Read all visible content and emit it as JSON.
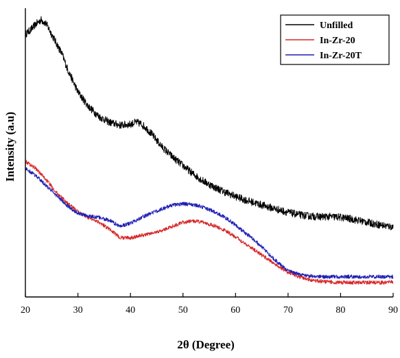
{
  "chart_data": {
    "type": "line",
    "title": "",
    "xlabel": "2θ (Degree)",
    "ylabel": "Intensity (a.u)",
    "xlim": [
      20,
      90
    ],
    "ylim": [
      0,
      100
    ],
    "xticks": [
      "20",
      "30",
      "40",
      "50",
      "60",
      "70",
      "80",
      "90"
    ],
    "grid": false,
    "legend_position": "top-right",
    "series": [
      {
        "name": "Unfilled",
        "color": "#000000",
        "x": [
          20,
          21,
          22,
          23,
          24,
          25,
          26,
          27,
          28,
          30,
          32,
          34,
          36,
          38,
          40,
          41,
          42,
          43,
          44,
          46,
          48,
          50,
          52,
          54,
          56,
          58,
          60,
          62,
          64,
          66,
          68,
          70,
          72,
          74,
          76,
          78,
          80,
          82,
          84,
          86,
          88,
          90
        ],
        "y": [
          91.0,
          92.5,
          94.5,
          96.0,
          94.5,
          91.0,
          87.5,
          84.0,
          79.0,
          71.0,
          66.0,
          62.5,
          60.5,
          59.5,
          59.8,
          60.5,
          60.0,
          58.5,
          56.5,
          52.0,
          48.5,
          45.5,
          42.5,
          40.0,
          38.0,
          36.3,
          34.8,
          33.5,
          32.4,
          31.3,
          30.3,
          29.3,
          28.5,
          28.0,
          27.8,
          27.8,
          27.6,
          27.0,
          26.3,
          25.5,
          24.8,
          24.2
        ]
      },
      {
        "name": "In-Zr-20",
        "color": "#d62728",
        "x": [
          20,
          22,
          24,
          26,
          28,
          30,
          32,
          34,
          36,
          38,
          40,
          42,
          44,
          46,
          48,
          50,
          52,
          54,
          56,
          58,
          60,
          62,
          64,
          66,
          68,
          70,
          72,
          74,
          76,
          78,
          80,
          82,
          84,
          86,
          88,
          90
        ],
        "y": [
          47.0,
          44.5,
          40.5,
          36.0,
          32.5,
          29.5,
          27.5,
          26.0,
          23.5,
          20.5,
          20.5,
          21.3,
          22.0,
          23.0,
          24.5,
          25.8,
          26.3,
          25.8,
          24.6,
          23.0,
          20.8,
          18.3,
          15.8,
          13.3,
          10.8,
          8.5,
          7.0,
          6.0,
          5.5,
          5.2,
          5.0,
          5.0,
          5.0,
          5.0,
          5.0,
          5.2
        ]
      },
      {
        "name": "In-Zr-20T",
        "color": "#1f1fb4",
        "x": [
          20,
          22,
          24,
          26,
          28,
          30,
          32,
          34,
          36,
          38,
          40,
          42,
          44,
          46,
          48,
          50,
          52,
          54,
          56,
          58,
          60,
          62,
          64,
          66,
          68,
          70,
          72,
          74,
          76,
          78,
          80,
          82,
          84,
          86,
          88,
          90
        ],
        "y": [
          44.5,
          42.0,
          38.5,
          35.0,
          31.5,
          29.0,
          28.0,
          27.5,
          26.5,
          24.5,
          25.5,
          27.5,
          29.0,
          30.5,
          31.8,
          32.3,
          32.0,
          31.0,
          29.5,
          27.5,
          25.0,
          22.0,
          19.0,
          15.5,
          12.0,
          9.0,
          8.0,
          7.3,
          7.0,
          7.0,
          7.0,
          7.0,
          7.0,
          7.0,
          7.0,
          7.0
        ]
      }
    ]
  }
}
